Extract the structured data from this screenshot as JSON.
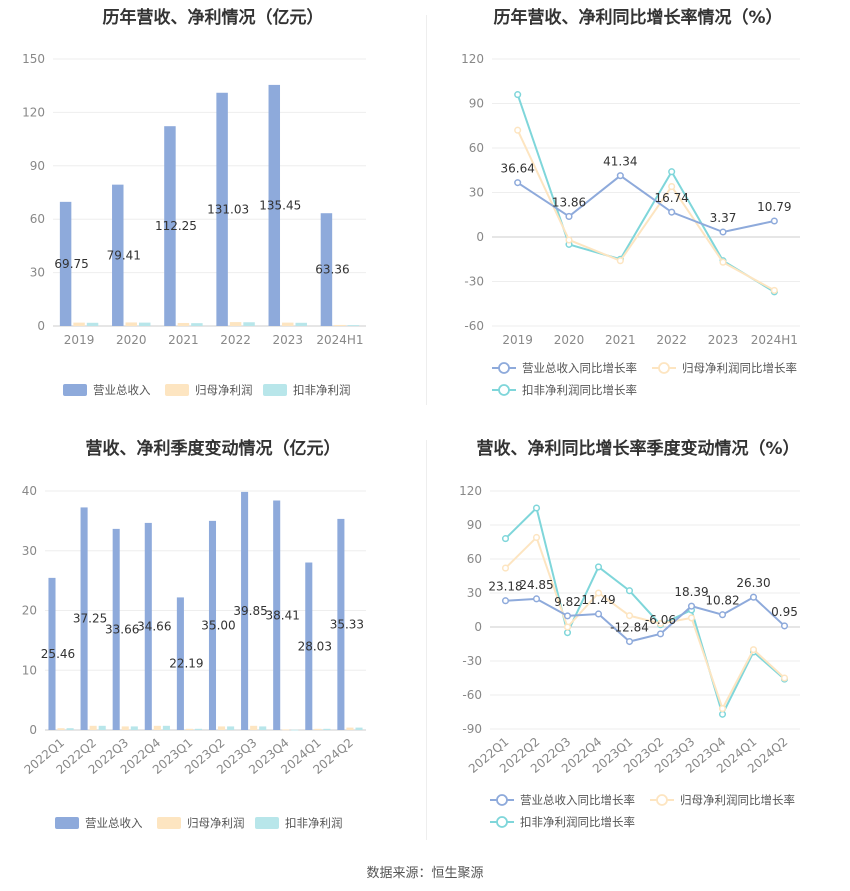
{
  "source_label": "数据来源：恒生聚源",
  "colors": {
    "revenue": "#8eaadb",
    "parent_profit": "#fde5c1",
    "deducted_profit": "#b8e6ea",
    "line_revenue": "#8eaadb",
    "line_parent": "#fde5c1",
    "line_deducted": "#7fd6da"
  },
  "chart_data": [
    {
      "id": "annual-bar",
      "type": "bar",
      "title": "历年营收、净利情况（亿元）",
      "categories": [
        "2019",
        "2020",
        "2021",
        "2022",
        "2023",
        "2024H1"
      ],
      "ylim": [
        0,
        150
      ],
      "yticks": [
        0,
        30,
        60,
        90,
        120,
        150
      ],
      "series": [
        {
          "name": "营业总收入",
          "values": [
            69.75,
            79.41,
            112.25,
            131.03,
            135.45,
            63.36
          ],
          "labels": [
            "69.75",
            "79.41",
            "112.25",
            "131.03",
            "135.45",
            "63.36"
          ]
        },
        {
          "name": "归母净利润",
          "values": [
            1.9,
            2.0,
            1.7,
            2.2,
            1.9,
            0.6
          ]
        },
        {
          "name": "扣非净利润",
          "values": [
            1.8,
            1.9,
            1.6,
            2.1,
            1.8,
            0.5
          ]
        }
      ],
      "legend": "bottom"
    },
    {
      "id": "annual-line",
      "type": "line",
      "title": "历年营收、净利同比增长率情况（%）",
      "categories": [
        "2019",
        "2020",
        "2021",
        "2022",
        "2023",
        "2024H1"
      ],
      "ylim": [
        -60,
        120
      ],
      "yticks": [
        -60,
        -30,
        0,
        30,
        60,
        90,
        120
      ],
      "series": [
        {
          "name": "营业总收入同比增长率",
          "values": [
            36.64,
            13.86,
            41.34,
            16.74,
            3.37,
            10.79
          ],
          "labels": [
            "36.64",
            "13.86",
            "41.34",
            "16.74",
            "3.37",
            "10.79"
          ]
        },
        {
          "name": "归母净利润同比增长率",
          "values": [
            72,
            -2,
            -16,
            34,
            -17,
            -36
          ]
        },
        {
          "name": "扣非净利润同比增长率",
          "values": [
            96,
            -5,
            -15,
            44,
            -16,
            -37
          ]
        }
      ],
      "legend": "bottom"
    },
    {
      "id": "quarter-bar",
      "type": "bar",
      "title": "营收、净利季度变动情况（亿元）",
      "categories": [
        "2022Q1",
        "2022Q2",
        "2022Q3",
        "2022Q4",
        "2023Q1",
        "2023Q2",
        "2023Q3",
        "2023Q4",
        "2024Q1",
        "2024Q2"
      ],
      "ylim": [
        0,
        40
      ],
      "yticks": [
        0,
        10,
        20,
        30,
        40
      ],
      "series": [
        {
          "name": "营业总收入",
          "values": [
            25.46,
            37.25,
            33.66,
            34.66,
            22.19,
            35.0,
            39.85,
            38.41,
            28.03,
            35.33
          ],
          "labels": [
            "25.46",
            "37.25",
            "33.66",
            "34.66",
            "22.19",
            "35.00",
            "39.85",
            "38.41",
            "28.03",
            "35.33"
          ]
        },
        {
          "name": "归母净利润",
          "values": [
            0.3,
            0.7,
            0.6,
            0.7,
            0.2,
            0.6,
            0.7,
            0.1,
            0.2,
            0.4
          ]
        },
        {
          "name": "扣非净利润",
          "values": [
            0.3,
            0.7,
            0.6,
            0.7,
            0.2,
            0.6,
            0.6,
            0.05,
            0.2,
            0.4
          ]
        }
      ],
      "legend": "bottom"
    },
    {
      "id": "quarter-line",
      "type": "line",
      "title": "营收、净利同比增长率季度变动情况（%）",
      "categories": [
        "2022Q1",
        "2022Q2",
        "2022Q3",
        "2022Q4",
        "2023Q1",
        "2023Q2",
        "2023Q3",
        "2023Q4",
        "2024Q1",
        "2024Q2"
      ],
      "ylim": [
        -90,
        120
      ],
      "yticks": [
        -90,
        -60,
        -30,
        0,
        30,
        60,
        90,
        120
      ],
      "series": [
        {
          "name": "营业总收入同比增长率",
          "values": [
            23.18,
            24.85,
            9.82,
            11.49,
            -12.84,
            -6.06,
            18.39,
            10.82,
            26.3,
            0.95
          ],
          "labels": [
            "23.18",
            "24.85",
            "9.82",
            "11.49",
            "-12.84",
            "-6.06",
            "18.39",
            "10.82",
            "26.30",
            "0.95"
          ]
        },
        {
          "name": "归母净利润同比增长率",
          "values": [
            52,
            79,
            0,
            30,
            10,
            3,
            8,
            -72,
            -20,
            -45
          ]
        },
        {
          "name": "扣非净利润同比增长率",
          "values": [
            78,
            105,
            -5,
            53,
            32,
            2,
            15,
            -77,
            -22,
            -46
          ]
        }
      ],
      "legend": "bottom"
    }
  ]
}
